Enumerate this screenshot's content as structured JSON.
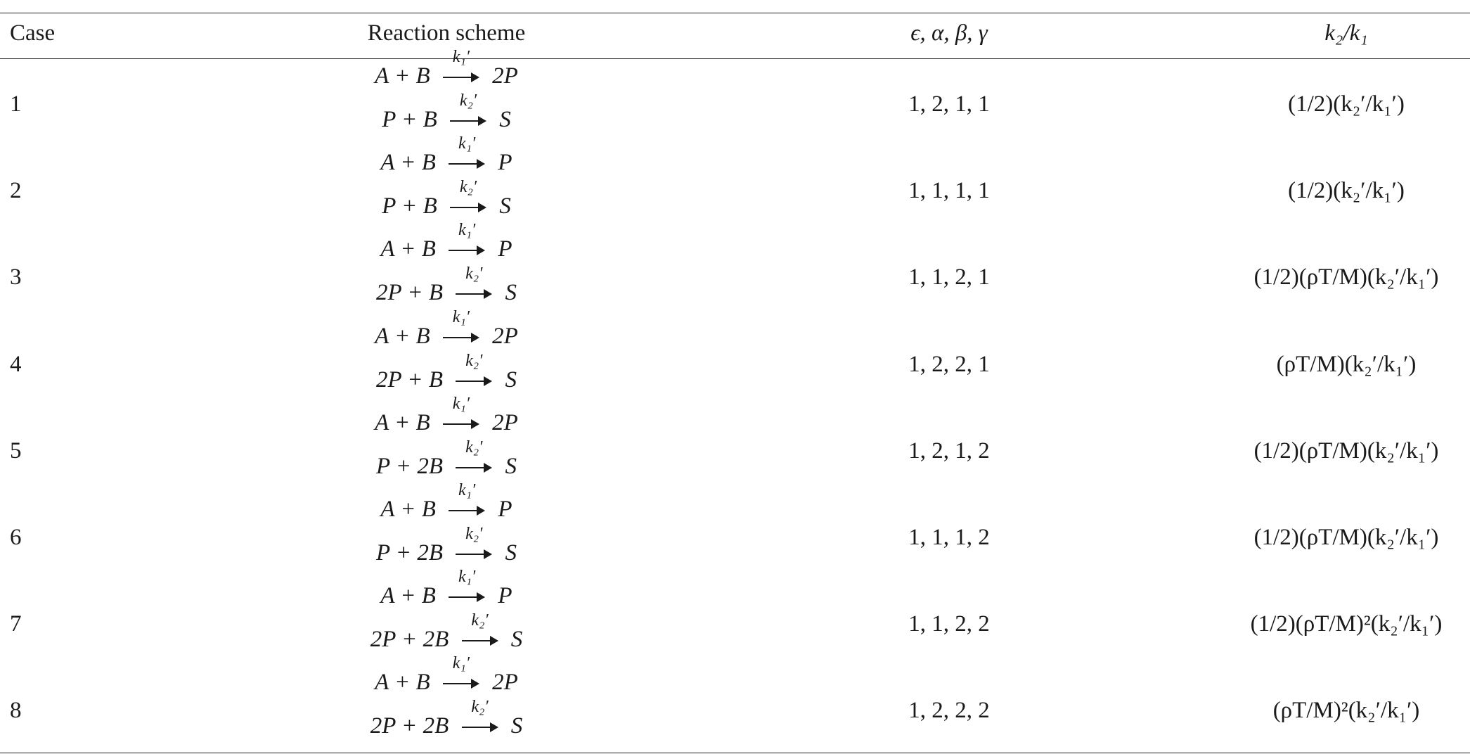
{
  "table": {
    "headers": {
      "case": "Case",
      "scheme": "Reaction scheme",
      "params": "ϵ, α, β, γ",
      "ratio": "k₂/k₁"
    },
    "rows": [
      {
        "case": "1",
        "r1_lhs": "A + B",
        "r1_label": "k₁′",
        "r1_rhs": "2P",
        "r2_lhs": "P + B",
        "r2_label": "k₂′",
        "r2_rhs": "S",
        "params": "1, 2, 1, 1",
        "ratio": "(1/2)(k₂′/k₁′)"
      },
      {
        "case": "2",
        "r1_lhs": "A + B",
        "r1_label": "k₁′",
        "r1_rhs": "P",
        "r2_lhs": "P + B",
        "r2_label": "k₂′",
        "r2_rhs": "S",
        "params": "1, 1, 1, 1",
        "ratio": "(1/2)(k₂′/k₁′)"
      },
      {
        "case": "3",
        "r1_lhs": "A + B",
        "r1_label": "k₁′",
        "r1_rhs": "P",
        "r2_lhs": "2P + B",
        "r2_label": "k₂′",
        "r2_rhs": "S",
        "params": "1, 1, 2, 1",
        "ratio": "(1/2)(ρT/M)(k₂′/k₁′)"
      },
      {
        "case": "4",
        "r1_lhs": "A + B",
        "r1_label": "k₁′",
        "r1_rhs": "2P",
        "r2_lhs": "2P + B",
        "r2_label": "k₂′",
        "r2_rhs": "S",
        "params": "1, 2, 2, 1",
        "ratio": "(ρT/M)(k₂′/k₁′)"
      },
      {
        "case": "5",
        "r1_lhs": "A + B",
        "r1_label": "k₁′",
        "r1_rhs": "2P",
        "r2_lhs": "P + 2B",
        "r2_label": "k₂′",
        "r2_rhs": "S",
        "params": "1, 2, 1, 2",
        "ratio": "(1/2)(ρT/M)(k₂′/k₁′)"
      },
      {
        "case": "6",
        "r1_lhs": "A + B",
        "r1_label": "k₁′",
        "r1_rhs": "P",
        "r2_lhs": "P + 2B",
        "r2_label": "k₂′",
        "r2_rhs": "S",
        "params": "1, 1, 1, 2",
        "ratio": "(1/2)(ρT/M)(k₂′/k₁′)"
      },
      {
        "case": "7",
        "r1_lhs": "A + B",
        "r1_label": "k₁′",
        "r1_rhs": "P",
        "r2_lhs": "2P + 2B",
        "r2_label": "k₂′",
        "r2_rhs": "S",
        "params": "1, 1, 2, 2",
        "ratio": "(1/2)(ρT/M)²(k₂′/k₁′)"
      },
      {
        "case": "8",
        "r1_lhs": "A + B",
        "r1_label": "k₁′",
        "r1_rhs": "2P",
        "r2_lhs": "2P + 2B",
        "r2_label": "k₂′",
        "r2_rhs": "S",
        "params": "1, 2, 2, 2",
        "ratio": "(ρT/M)²(k₂′/k₁′)"
      }
    ]
  }
}
